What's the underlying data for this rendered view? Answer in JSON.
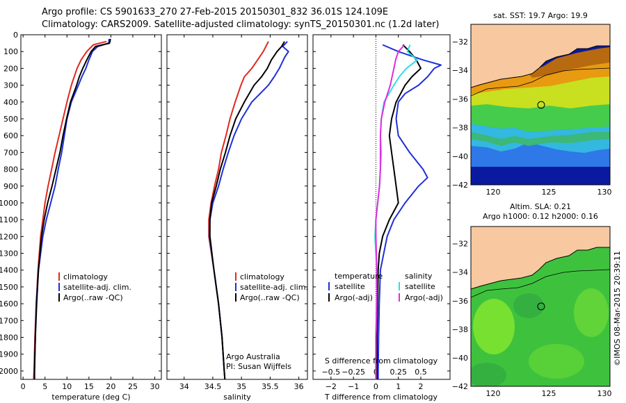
{
  "header": {
    "line1": "Argo profile: CS 5901633_270 27-Feb-2015 20150301_832 36.01S 124.109E",
    "line2": "Climatology: CARS2009. Satellite-adjusted climatology: synTS_20150301.nc (1.2d later)"
  },
  "colors": {
    "climatology": "#e0281e",
    "satellite": "#1e2fd8",
    "argo": "#000000",
    "salinity_satellite": "#28e0e8",
    "salinity_argo": "#e02ce0",
    "land": "#f8c8a0"
  },
  "panels": {
    "temperature": {
      "xlabel": "temperature (deg C)",
      "legend": [
        "climatology",
        "satellite-adj. clim.",
        "Argo(..raw -QC)"
      ]
    },
    "salinity": {
      "xlabel": "salinity",
      "legend": [
        "climatology",
        "satellite-adj. clim.",
        "Argo(..raw -QC)"
      ],
      "note1": "Argo Australia",
      "note2": "PI: Susan Wijffels"
    },
    "difference": {
      "xlabel_bottom": "T difference from climatology",
      "xlabel_top": "S difference from climatology",
      "legend_temp_title": "temperature",
      "legend_temp": [
        "satellite",
        "Argo(-adj)"
      ],
      "legend_sal_title": "salinity",
      "legend_sal": [
        "satellite",
        "Argo(-adj)"
      ]
    },
    "map_sst": {
      "title": "sat. SST: 19.7 Argo: 19.9"
    },
    "map_sla": {
      "title1": "Altim. SLA: 0.21",
      "title2": "Argo h1000: 0.12 h2000: 0.16",
      "credit": "©IMOS 08-Mar-2015 20:39:11"
    }
  },
  "chart_data": [
    {
      "type": "line",
      "name": "temperature",
      "xlabel": "temperature (deg C)",
      "ylabel": "",
      "xlim": [
        -0.5,
        31.5
      ],
      "ylim": [
        2050,
        0
      ],
      "xticks": [
        0,
        5,
        10,
        15,
        20,
        25,
        30
      ],
      "yticks": [
        0,
        100,
        200,
        300,
        400,
        500,
        600,
        700,
        800,
        900,
        1000,
        1100,
        1200,
        1300,
        1400,
        1500,
        1600,
        1700,
        1800,
        1900,
        2000
      ],
      "series": [
        {
          "name": "climatology",
          "color": "#e0281e",
          "depth": [
            40,
            60,
            100,
            150,
            200,
            300,
            400,
            500,
            600,
            700,
            800,
            900,
            1000,
            1100,
            1200,
            1400,
            1600,
            1800,
            2000,
            2050
          ],
          "values": [
            19.0,
            16.0,
            14.5,
            13.2,
            12.3,
            11.0,
            10.0,
            9.1,
            8.2,
            7.3,
            6.5,
            5.7,
            5.0,
            4.5,
            4.0,
            3.4,
            3.0,
            2.7,
            2.5,
            2.4
          ]
        },
        {
          "name": "satellite-adj. clim.",
          "color": "#1e2fd8",
          "depth": [
            25,
            50,
            70,
            100,
            150,
            200,
            250,
            300,
            400,
            500,
            600,
            700,
            800,
            900,
            1000,
            1100,
            1200,
            1400,
            1600,
            1800,
            2000,
            2050
          ],
          "values": [
            19.6,
            19.5,
            17.0,
            15.8,
            15.0,
            14.3,
            13.4,
            12.6,
            11.0,
            10.0,
            9.4,
            8.8,
            8.0,
            7.3,
            6.3,
            5.3,
            4.5,
            3.5,
            3.0,
            2.8,
            2.6,
            2.6
          ]
        },
        {
          "name": "Argo(..raw -QC)",
          "color": "#000000",
          "depth": [
            25,
            50,
            70,
            100,
            150,
            200,
            250,
            300,
            400,
            500,
            600,
            700,
            800,
            900,
            1000,
            1100,
            1200,
            1400,
            1600,
            1800,
            2000,
            2050
          ],
          "values": [
            19.9,
            19.7,
            16.5,
            15.5,
            14.5,
            13.6,
            12.8,
            12.2,
            10.8,
            9.9,
            9.1,
            8.4,
            7.5,
            6.6,
            5.6,
            4.8,
            4.2,
            3.5,
            3.1,
            2.8,
            2.6,
            2.6
          ]
        }
      ]
    },
    {
      "type": "line",
      "name": "salinity",
      "xlabel": "salinity",
      "ylabel": "",
      "xlim": [
        33.7,
        36.15
      ],
      "ylim": [
        2050,
        0
      ],
      "xticks": [
        34,
        34.5,
        35,
        35.5,
        36
      ],
      "series": [
        {
          "name": "climatology",
          "color": "#e0281e",
          "depth": [
            40,
            60,
            100,
            150,
            200,
            250,
            300,
            400,
            500,
            600,
            700,
            800,
            900,
            1000,
            1100,
            1200,
            1400,
            1600,
            1800,
            2000,
            2050
          ],
          "values": [
            35.47,
            35.44,
            35.38,
            35.28,
            35.18,
            35.05,
            34.99,
            34.89,
            34.8,
            34.73,
            34.65,
            34.6,
            34.53,
            34.47,
            34.43,
            34.43,
            34.52,
            34.6,
            34.66,
            34.7,
            34.71
          ]
        },
        {
          "name": "satellite-adj. clim.",
          "color": "#1e2fd8",
          "depth": [
            40,
            70,
            100,
            130,
            150,
            200,
            250,
            300,
            400,
            500,
            600,
            700,
            800,
            900,
            1000,
            1100,
            1200,
            1400,
            1600,
            1800,
            2000,
            2050
          ],
          "values": [
            35.8,
            35.72,
            35.82,
            35.76,
            35.73,
            35.66,
            35.57,
            35.47,
            35.18,
            35.0,
            34.87,
            34.77,
            34.68,
            34.6,
            34.5,
            34.45,
            34.44,
            34.52,
            34.6,
            34.66,
            34.7,
            34.71
          ]
        },
        {
          "name": "Argo(..raw -QC)",
          "color": "#000000",
          "depth": [
            40,
            70,
            100,
            150,
            200,
            250,
            300,
            400,
            500,
            600,
            700,
            800,
            900,
            1000,
            1100,
            1200,
            1400,
            1600,
            1800,
            2000,
            2050
          ],
          "values": [
            35.75,
            35.7,
            35.62,
            35.52,
            35.45,
            35.35,
            35.22,
            35.05,
            34.9,
            34.8,
            34.72,
            34.63,
            34.56,
            34.48,
            34.45,
            34.45,
            34.52,
            34.6,
            34.66,
            34.7,
            34.71
          ]
        }
      ]
    },
    {
      "type": "line",
      "name": "difference",
      "xlabel": "T difference from climatology",
      "xlabel_top": "S difference from climatology",
      "xlim": [
        -2.8,
        3.3
      ],
      "ylim": [
        2050,
        0
      ],
      "xticks": [
        -2,
        -1,
        0,
        1,
        2
      ],
      "top_ticks": [
        -0.5,
        -0.25,
        0,
        0.25,
        0.5
      ],
      "top_tick_labels": [
        "−0.5",
        "−0.25",
        "0",
        "0.25",
        "0.5"
      ],
      "series": [
        {
          "name": "satellite",
          "group": "temperature",
          "color": "#1e2fd8",
          "depth": [
            60,
            100,
            150,
            180,
            200,
            250,
            300,
            350,
            400,
            500,
            600,
            700,
            800,
            850,
            900,
            1000,
            1100,
            1200,
            1400,
            1600,
            1800,
            2000,
            2050
          ],
          "values": [
            0.3,
            1.0,
            2.1,
            2.9,
            2.6,
            2.3,
            1.9,
            1.3,
            1.0,
            0.9,
            1.0,
            1.5,
            2.1,
            2.3,
            1.9,
            1.3,
            0.8,
            0.5,
            0.2,
            0.15,
            0.12,
            0.1,
            0.1
          ]
        },
        {
          "name": "Argo(-adj)",
          "group": "temperature",
          "color": "#000000",
          "depth": [
            60,
            100,
            150,
            200,
            250,
            300,
            400,
            500,
            600,
            700,
            800,
            900,
            1000,
            1100,
            1200,
            1300,
            1400,
            1600,
            1800,
            2000,
            2050
          ],
          "values": [
            1.2,
            1.5,
            1.8,
            2.0,
            1.6,
            1.3,
            0.9,
            0.7,
            0.6,
            0.7,
            0.8,
            0.9,
            1.0,
            0.6,
            0.3,
            0.15,
            0.1,
            0.08,
            0.05,
            0.05,
            0.05
          ]
        },
        {
          "name": "satellite",
          "group": "salinity",
          "color": "#28e0e8",
          "depth": [
            60,
            100,
            150,
            200,
            250,
            300,
            400,
            500,
            600,
            700,
            800,
            900,
            1000,
            1100,
            1200,
            1400,
            1600,
            1800,
            2000,
            2050
          ],
          "values": [
            0.38,
            0.35,
            0.46,
            0.34,
            0.26,
            0.2,
            0.09,
            0.06,
            0.05,
            0.06,
            0.05,
            0.04,
            0.02,
            0.0,
            -0.01,
            0.01,
            0.01,
            0.0,
            0.0,
            0.0
          ]
        },
        {
          "name": "Argo(-adj)",
          "group": "salinity",
          "color": "#e02ce0",
          "depth": [
            60,
            100,
            150,
            200,
            250,
            300,
            400,
            500,
            600,
            700,
            800,
            900,
            1000,
            1100,
            1200,
            1400,
            1600,
            1800,
            2000,
            2050
          ],
          "values": [
            0.32,
            0.25,
            0.22,
            0.2,
            0.18,
            0.16,
            0.1,
            0.06,
            0.05,
            0.05,
            0.05,
            0.04,
            0.02,
            0.0,
            0.0,
            0.01,
            0.01,
            0.0,
            0.0,
            0.0
          ]
        }
      ]
    },
    {
      "type": "heatmap",
      "name": "map_sst",
      "title": "sat. SST: 19.7 Argo: 19.9",
      "xlim": [
        118,
        130.5
      ],
      "ylim": [
        -42,
        -30.8
      ],
      "xticks": [
        120,
        125,
        130
      ],
      "yticks": [
        -32,
        -34,
        -36,
        -38,
        -40,
        -42
      ],
      "marker": {
        "lon": 124.109,
        "lat": -36.01
      }
    },
    {
      "type": "heatmap",
      "name": "map_sla",
      "title": "Altim. SLA: 0.21",
      "xlim": [
        118,
        130.5
      ],
      "ylim": [
        -42,
        -30.8
      ],
      "xticks": [
        120,
        125,
        130
      ],
      "yticks": [
        -32,
        -34,
        -36,
        -38,
        -40,
        -42
      ],
      "marker": {
        "lon": 124.109,
        "lat": -36.01
      }
    }
  ]
}
